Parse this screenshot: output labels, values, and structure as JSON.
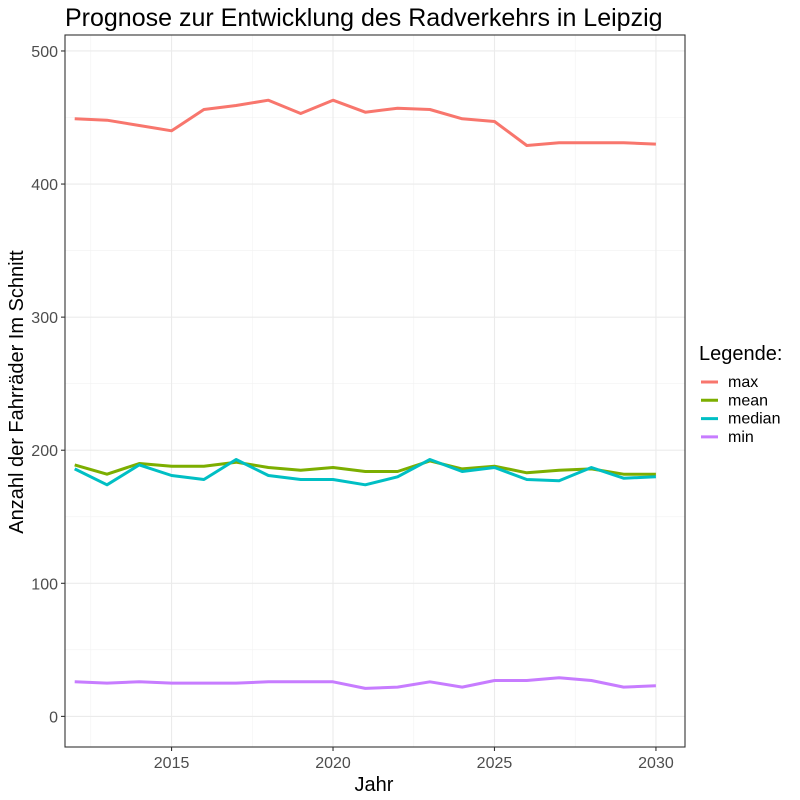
{
  "chart_data": {
    "type": "line",
    "title": "Prognose zur Entwicklung des Radverkehrs in  Leipzig",
    "xlabel": "Jahr",
    "ylabel": "Anzahl der Fahrräder Im Schnitt",
    "xlim": [
      2011.7,
      2030.9
    ],
    "ylim": [
      -23,
      512
    ],
    "x_ticks": [
      2015,
      2020,
      2025,
      2030
    ],
    "y_ticks": [
      0,
      100,
      200,
      300,
      400,
      500
    ],
    "grid": true,
    "legend_title": "Legende:",
    "legend_position": "right",
    "x": [
      2012,
      2013,
      2014,
      2015,
      2016,
      2017,
      2018,
      2019,
      2020,
      2021,
      2022,
      2023,
      2024,
      2025,
      2026,
      2027,
      2028,
      2029,
      2030
    ],
    "series": [
      {
        "name": "max",
        "color": "#F8766D",
        "values": [
          449,
          448,
          444,
          440,
          456,
          459,
          463,
          453,
          463,
          454,
          457,
          456,
          449,
          447,
          429,
          431,
          431,
          431,
          430
        ]
      },
      {
        "name": "mean",
        "color": "#7CAE00",
        "values": [
          189,
          182,
          190,
          188,
          188,
          191,
          187,
          185,
          187,
          184,
          184,
          192,
          186,
          188,
          183,
          185,
          186,
          182,
          182
        ]
      },
      {
        "name": "median",
        "color": "#00BFC4",
        "values": [
          186,
          174,
          189,
          181,
          178,
          193,
          181,
          178,
          178,
          174,
          180,
          193,
          184,
          187,
          178,
          177,
          187,
          179,
          180
        ]
      },
      {
        "name": "min",
        "color": "#C77CFF",
        "values": [
          26,
          25,
          26,
          25,
          25,
          25,
          26,
          26,
          26,
          21,
          22,
          26,
          22,
          27,
          27,
          29,
          27,
          22,
          23
        ]
      }
    ]
  }
}
